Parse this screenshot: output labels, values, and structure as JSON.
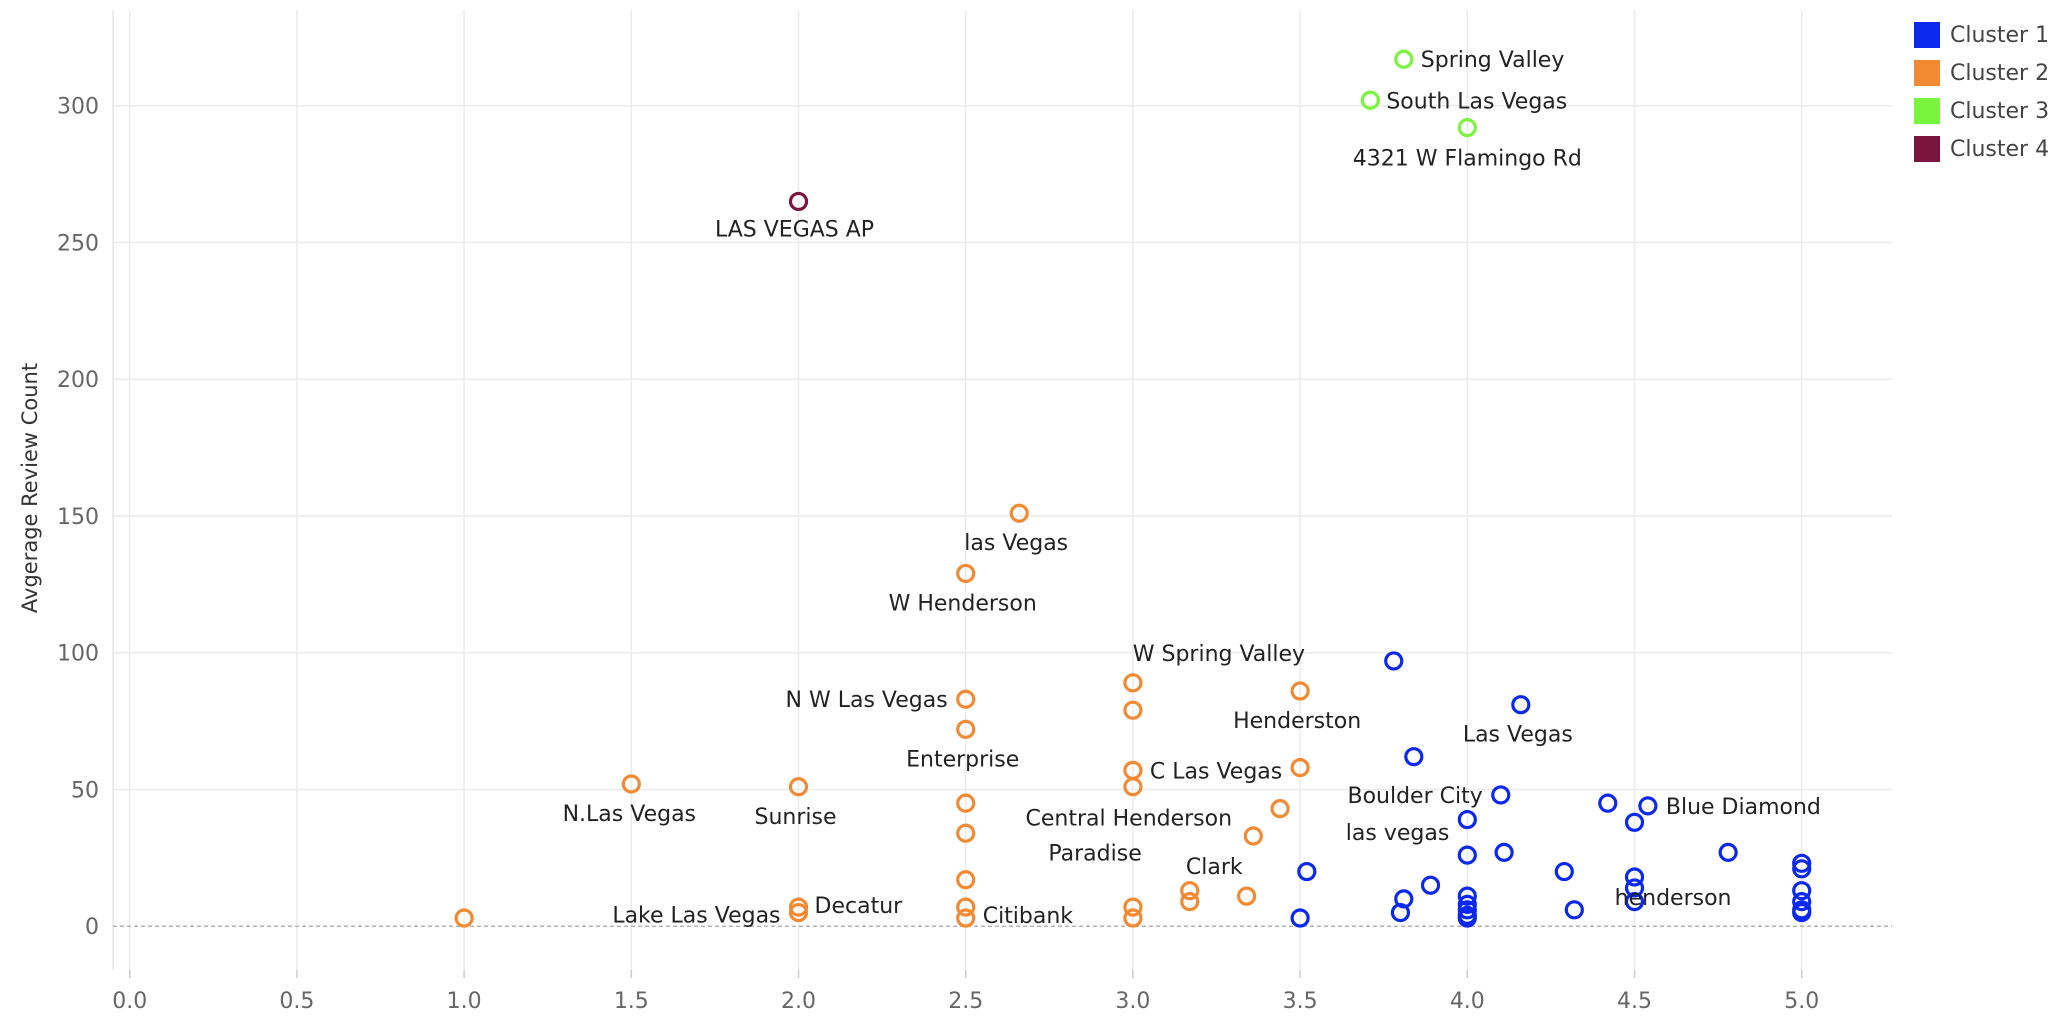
{
  "chart_data": {
    "type": "scatter",
    "title": "",
    "xlabel": "",
    "ylabel": "Avgerage Review Count",
    "xlim": [
      -0.05,
      5.27
    ],
    "ylim": [
      -16,
      335
    ],
    "x_ticks": [
      "0.0",
      "0.5",
      "1.0",
      "1.5",
      "2.0",
      "2.5",
      "3.0",
      "3.5",
      "4.0",
      "4.5",
      "5.0"
    ],
    "y_ticks": [
      "0",
      "50",
      "100",
      "150",
      "200",
      "250",
      "300"
    ],
    "grid": true,
    "zero_line": "dashed",
    "legend": {
      "position": "top-right"
    },
    "series": [
      {
        "name": "Cluster 1",
        "color": "#0a28ee",
        "points": [
          {
            "x": 3.78,
            "y": 97
          },
          {
            "x": 4.16,
            "y": 81,
            "label": "Las  Vegas"
          },
          {
            "x": 3.84,
            "y": 62
          },
          {
            "x": 4.1,
            "y": 48,
            "label": "Boulder City"
          },
          {
            "x": 4.42,
            "y": 45
          },
          {
            "x": 4.54,
            "y": 44,
            "label": "Blue Diamond"
          },
          {
            "x": 4.0,
            "y": 39
          },
          {
            "x": 4.5,
            "y": 38
          },
          {
            "x": 4.11,
            "y": 27
          },
          {
            "x": 4.0,
            "y": 26,
            "label": "las vegas"
          },
          {
            "x": 4.78,
            "y": 27
          },
          {
            "x": 5.0,
            "y": 23
          },
          {
            "x": 5.0,
            "y": 21
          },
          {
            "x": 3.52,
            "y": 20
          },
          {
            "x": 4.29,
            "y": 20
          },
          {
            "x": 4.5,
            "y": 18
          },
          {
            "x": 3.89,
            "y": 15
          },
          {
            "x": 4.5,
            "y": 14,
            "label": "henderson"
          },
          {
            "x": 5.0,
            "y": 13
          },
          {
            "x": 4.0,
            "y": 11
          },
          {
            "x": 3.81,
            "y": 10
          },
          {
            "x": 4.5,
            "y": 9
          },
          {
            "x": 5.0,
            "y": 9
          },
          {
            "x": 4.0,
            "y": 8
          },
          {
            "x": 4.0,
            "y": 6
          },
          {
            "x": 5.0,
            "y": 6
          },
          {
            "x": 4.32,
            "y": 6
          },
          {
            "x": 3.8,
            "y": 5
          },
          {
            "x": 4.0,
            "y": 4
          },
          {
            "x": 5.0,
            "y": 5
          },
          {
            "x": 3.5,
            "y": 3
          },
          {
            "x": 4.0,
            "y": 3
          }
        ]
      },
      {
        "name": "Cluster 2",
        "color": "#f28a33",
        "points": [
          {
            "x": 2.66,
            "y": 151,
            "label": "las Vegas"
          },
          {
            "x": 2.5,
            "y": 129,
            "label": "W Henderson"
          },
          {
            "x": 3.0,
            "y": 89,
            "label": "W Spring Valley"
          },
          {
            "x": 3.5,
            "y": 86,
            "label": "Henderston"
          },
          {
            "x": 2.5,
            "y": 83,
            "label": "N W Las Vegas"
          },
          {
            "x": 3.0,
            "y": 79
          },
          {
            "x": 2.5,
            "y": 72,
            "label": "Enterprise"
          },
          {
            "x": 3.5,
            "y": 58
          },
          {
            "x": 3.0,
            "y": 57,
            "label": "C Las Vegas"
          },
          {
            "x": 1.5,
            "y": 52,
            "label": "N.Las Vegas"
          },
          {
            "x": 2.0,
            "y": 51,
            "label": "Sunrise"
          },
          {
            "x": 3.0,
            "y": 51
          },
          {
            "x": 2.5,
            "y": 45
          },
          {
            "x": 3.44,
            "y": 43,
            "label": "Central Henderson"
          },
          {
            "x": 2.5,
            "y": 34
          },
          {
            "x": 3.36,
            "y": 33
          },
          {
            "x": 2.5,
            "y": 17
          },
          {
            "x": 3.17,
            "y": 13,
            "label": "Paradise"
          },
          {
            "x": 3.34,
            "y": 11,
            "label": "Clark"
          },
          {
            "x": 3.17,
            "y": 9
          },
          {
            "x": 2.0,
            "y": 7,
            "label": "Decatur"
          },
          {
            "x": 2.5,
            "y": 7
          },
          {
            "x": 3.0,
            "y": 7
          },
          {
            "x": 2.0,
            "y": 5,
            "label": "Lake Las Vegas"
          },
          {
            "x": 2.5,
            "y": 3,
            "label": "Citibank"
          },
          {
            "x": 3.0,
            "y": 3
          },
          {
            "x": 1.0,
            "y": 3
          }
        ]
      },
      {
        "name": "Cluster 3",
        "color": "#7af53e",
        "points": [
          {
            "x": 3.81,
            "y": 317,
            "label": "Spring Valley"
          },
          {
            "x": 3.71,
            "y": 302,
            "label": "South Las Vegas"
          },
          {
            "x": 4.0,
            "y": 292,
            "label": "4321 W Flamingo Rd"
          }
        ]
      },
      {
        "name": "Cluster 4",
        "color": "#7b1540",
        "points": [
          {
            "x": 2.0,
            "y": 265,
            "label": "LAS VEGAS AP"
          }
        ]
      }
    ]
  }
}
